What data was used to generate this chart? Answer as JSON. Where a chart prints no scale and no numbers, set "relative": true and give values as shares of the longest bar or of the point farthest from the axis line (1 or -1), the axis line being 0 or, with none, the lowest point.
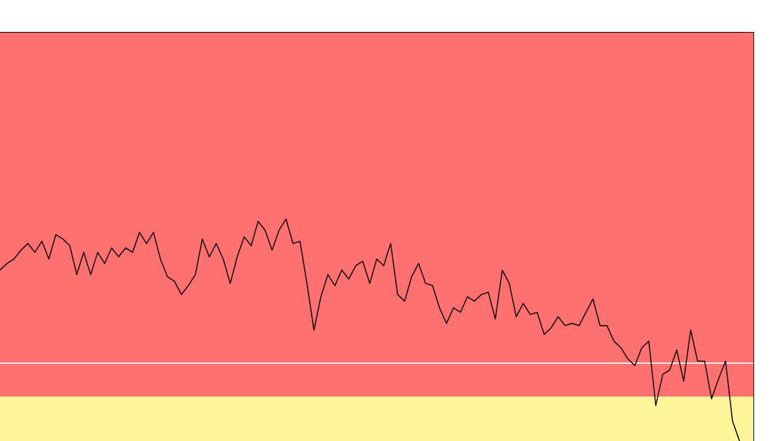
{
  "chart_data": {
    "type": "line",
    "relative": true,
    "categories": [
      null,
      null,
      null,
      null,
      null,
      null,
      null,
      null,
      null,
      null,
      null,
      null,
      null,
      null,
      null,
      null,
      null,
      null,
      null,
      null,
      null,
      null,
      null,
      null,
      null,
      null,
      null,
      null,
      null,
      null,
      null,
      null,
      null,
      null,
      null,
      null,
      null,
      null,
      null,
      null,
      null,
      null,
      null,
      null,
      null,
      null,
      null,
      null,
      null,
      null,
      null,
      null,
      null,
      null,
      null,
      null,
      null,
      null,
      null,
      null,
      null,
      null,
      null,
      null,
      null,
      null,
      null,
      null,
      null,
      null,
      null,
      null,
      null,
      null,
      null,
      null,
      null,
      null,
      null,
      null,
      null,
      null,
      null,
      null,
      null,
      null,
      null,
      null,
      null,
      null,
      null,
      null,
      null,
      null,
      null,
      null,
      null,
      null,
      null,
      null,
      null,
      null,
      null,
      null,
      null,
      null,
      null,
      null,
      null
    ],
    "series": [
      {
        "color": "#1a0f0f",
        "values": [
          0.77,
          0.8,
          0.82,
          0.86,
          0.89,
          0.85,
          0.9,
          0.82,
          0.93,
          0.91,
          0.88,
          0.75,
          0.85,
          0.75,
          0.85,
          0.8,
          0.87,
          0.83,
          0.87,
          0.85,
          0.94,
          0.89,
          0.94,
          0.82,
          0.74,
          0.72,
          0.66,
          0.7,
          0.75,
          0.91,
          0.83,
          0.89,
          0.82,
          0.71,
          0.83,
          0.92,
          0.88,
          0.99,
          0.95,
          0.86,
          0.95,
          1.0,
          0.89,
          0.9,
          0.71,
          0.5,
          0.65,
          0.75,
          0.7,
          0.77,
          0.73,
          0.79,
          0.81,
          0.71,
          0.82,
          0.79,
          0.89,
          0.66,
          0.63,
          0.74,
          0.8,
          0.71,
          0.7,
          0.6,
          0.53,
          0.6,
          0.58,
          0.65,
          0.63,
          0.66,
          0.67,
          0.55,
          0.77,
          0.71,
          0.56,
          0.62,
          0.57,
          0.58,
          0.48,
          0.51,
          0.56,
          0.52,
          0.53,
          0.52,
          0.58,
          0.64,
          0.52,
          0.52,
          0.45,
          0.42,
          0.37,
          0.34,
          0.42,
          0.45,
          0.16,
          0.3,
          0.32,
          0.41,
          0.27,
          0.5,
          0.36,
          0.36,
          0.19,
          0.28,
          0.36,
          0.09,
          0,
          null,
          null
        ]
      }
    ],
    "bands": [
      {
        "axis": "y",
        "from": 0.2,
        "to": 1.84,
        "color": "#ff7070"
      },
      {
        "axis": "y",
        "from": 0,
        "to": 0.2,
        "color": "#fff59a"
      }
    ],
    "ref_lines": [
      {
        "axis": "y",
        "value": 0.35,
        "color": "#f4eaea"
      }
    ],
    "line_style": "solid",
    "marker": "none"
  }
}
